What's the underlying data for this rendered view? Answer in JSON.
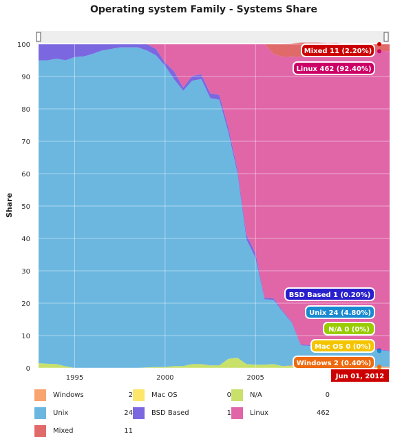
{
  "chart_data": {
    "type": "area",
    "title": "Operating system Family - Systems Share",
    "ylabel": "Share",
    "xlabel": "",
    "ylim": [
      0,
      100
    ],
    "y_ticks": [
      "0",
      "10",
      "20",
      "30",
      "40",
      "50",
      "60",
      "70",
      "80",
      "90",
      "100"
    ],
    "x_ticks": [
      "1995",
      "2000",
      "2005"
    ],
    "stacked": true,
    "grid": true,
    "x": [
      1993.0,
      1993.5,
      1994.0,
      1994.5,
      1995.0,
      1995.5,
      1996.0,
      1996.5,
      1997.0,
      1997.5,
      1998.0,
      1998.5,
      1999.0,
      1999.5,
      2000.0,
      2000.5,
      2001.0,
      2001.5,
      2002.0,
      2002.5,
      2003.0,
      2003.5,
      2004.0,
      2004.5,
      2005.0,
      2005.5,
      2006.0,
      2006.5,
      2007.0,
      2007.5,
      2008.0,
      2008.5,
      2009.0,
      2009.5,
      2010.0,
      2010.5,
      2011.0,
      2011.5,
      2012.0,
      2012.42
    ],
    "series": [
      {
        "name": "N/A",
        "color": "#c9e06a",
        "values": [
          1.5,
          1.3,
          1.2,
          0.5,
          0,
          0,
          0,
          0,
          0,
          0,
          0,
          0,
          0.2,
          0.3,
          0.3,
          0.6,
          0.6,
          1.2,
          1.2,
          0.8,
          0.8,
          2.8,
          3.2,
          1.2,
          1.0,
          1.0,
          1.2,
          0.6,
          0.6,
          0.5,
          0.3,
          0.3,
          0.3,
          0.2,
          0.2,
          0.2,
          0,
          0,
          0,
          0
        ]
      },
      {
        "name": "Mac OS",
        "color": "#fde66a",
        "values": [
          0,
          0,
          0,
          0,
          0,
          0,
          0,
          0,
          0,
          0,
          0,
          0,
          0,
          0,
          0,
          0,
          0,
          0,
          0,
          0,
          0,
          0,
          0,
          0,
          0,
          0,
          0,
          0,
          0,
          0,
          0,
          0,
          0,
          0,
          0,
          0,
          0,
          0,
          0,
          0
        ]
      },
      {
        "name": "Windows",
        "color": "#f9a46e",
        "values": [
          0,
          0,
          0,
          0,
          0,
          0,
          0,
          0,
          0,
          0,
          0,
          0,
          0,
          0,
          0,
          0,
          0,
          0,
          0,
          0,
          0,
          0,
          0,
          0,
          0,
          0,
          0,
          0,
          0.2,
          0.2,
          0.3,
          0.3,
          0.4,
          0.4,
          0.4,
          0.4,
          0.4,
          0.4,
          0.4,
          0.4
        ]
      },
      {
        "name": "Unix",
        "color": "#6bb7e0",
        "values": [
          93.5,
          93.7,
          94.3,
          94.5,
          96,
          96.2,
          97,
          98,
          98.5,
          99,
          99,
          99,
          97.8,
          96.2,
          93,
          88.5,
          85,
          87.5,
          88,
          82.5,
          82,
          70,
          57,
          38.5,
          33,
          20.2,
          19.8,
          16.8,
          13.2,
          6.3,
          6.2,
          6.2,
          6.3,
          6.3,
          6.0,
          5.8,
          5.8,
          5.3,
          5.0,
          4.8
        ]
      },
      {
        "name": "BSD Based",
        "color": "#7b68e0",
        "values": [
          5,
          5,
          4.5,
          5,
          4,
          3.8,
          3,
          2,
          1.5,
          1,
          1,
          1,
          2,
          2,
          1,
          2.5,
          1,
          1.5,
          1.5,
          1.5,
          1.5,
          1.5,
          1.2,
          1.5,
          1.5,
          0.5,
          0.5,
          0.3,
          0.3,
          0.3,
          0.3,
          0.3,
          0.3,
          0.2,
          0.2,
          0.2,
          0.2,
          0.2,
          0.2,
          0.2
        ]
      },
      {
        "name": "Linux",
        "color": "#e066a8",
        "values": [
          0,
          0,
          0,
          0,
          0,
          0,
          0,
          0,
          0,
          0,
          0,
          0,
          0,
          1.5,
          5.7,
          8.4,
          13.4,
          9.8,
          9.3,
          15.2,
          15.7,
          25.7,
          38.6,
          58.8,
          64.5,
          78.3,
          75.5,
          78.3,
          81.8,
          88.7,
          89.4,
          89.4,
          89.7,
          90.4,
          90.6,
          90.8,
          91.1,
          91.6,
          92.3,
          92.4
        ]
      },
      {
        "name": "Mixed",
        "color": "#e06a6a",
        "values": [
          0,
          0,
          0,
          0,
          0,
          0,
          0,
          0,
          0,
          0,
          0,
          0,
          0,
          0,
          0,
          0,
          0,
          0,
          0,
          0,
          0,
          0,
          0,
          0,
          0,
          0,
          3,
          4,
          4,
          4.5,
          4,
          4,
          3.3,
          2.9,
          2.6,
          2.6,
          2.5,
          2.5,
          2.1,
          2.2
        ]
      }
    ],
    "x_start": 1993.0,
    "x_end": 2012.42,
    "tooltips": [
      {
        "series": "Mixed",
        "label": "Mixed 11 (2.20%)",
        "color": "#cc0000"
      },
      {
        "series": "Linux",
        "label": "Linux 462 (92.40%)",
        "color": "#cc0066"
      },
      {
        "series": "BSD Based",
        "label": "BSD Based 1 (0.20%)",
        "color": "#2a1fcc"
      },
      {
        "series": "Unix",
        "label": "Unix 24 (4.80%)",
        "color": "#1a8ad0"
      },
      {
        "series": "N/A",
        "label": "N/A 0 (0%)",
        "color": "#99cc00"
      },
      {
        "series": "Mac OS",
        "label": "Mac OS 0 (0%)",
        "color": "#f5c400"
      },
      {
        "series": "Windows",
        "label": "Windows 2 (0.40%)",
        "color": "#ee6a10"
      }
    ],
    "x_tooltip": "Jun 01, 2012",
    "x_tooltip_color": "#cc0000"
  },
  "legend": [
    {
      "name": "Windows",
      "count": "2",
      "color": "#f9a46e"
    },
    {
      "name": "Mac OS",
      "count": "0",
      "color": "#fde66a"
    },
    {
      "name": "N/A",
      "count": "0",
      "color": "#c9e06a"
    },
    {
      "name": "Unix",
      "count": "24",
      "color": "#6bb7e0"
    },
    {
      "name": "BSD Based",
      "count": "1",
      "color": "#7b68e0"
    },
    {
      "name": "Linux",
      "count": "462",
      "color": "#e066a8"
    },
    {
      "name": "Mixed",
      "count": "11",
      "color": "#e06a6a"
    }
  ],
  "colors": {
    "scrollbar": "#eeeeee",
    "handle": "#555555"
  }
}
